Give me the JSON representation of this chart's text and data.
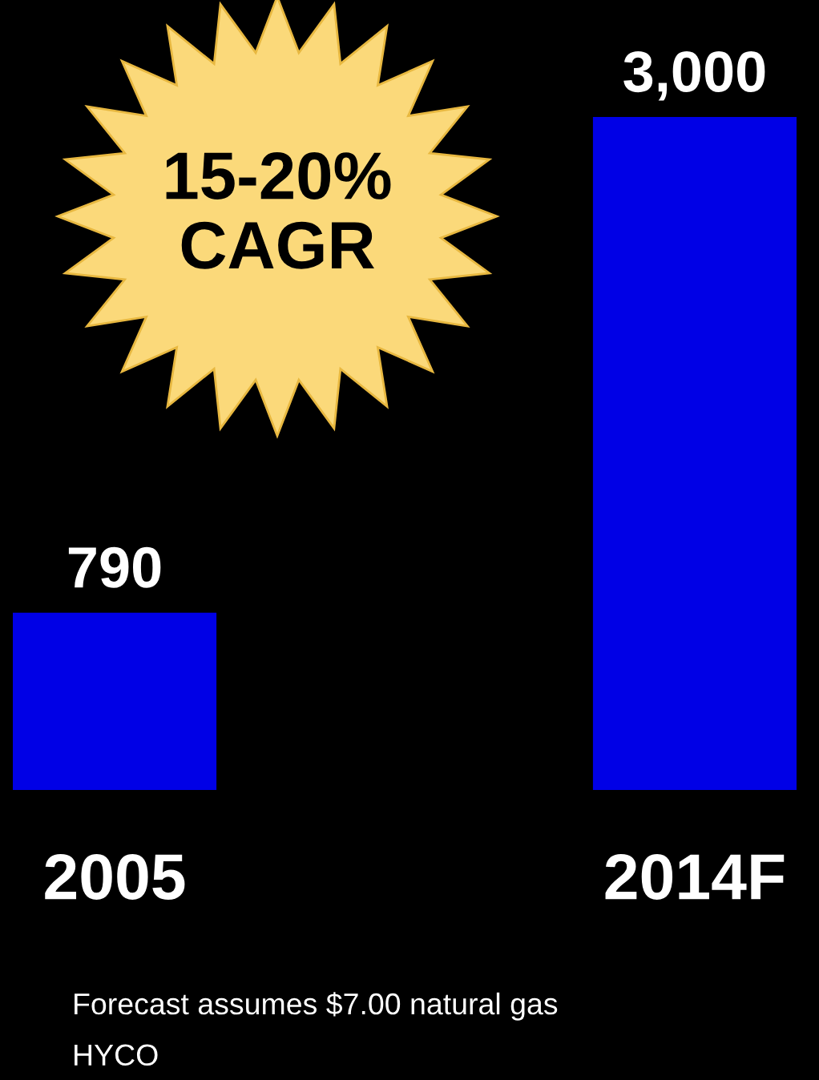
{
  "chart_data": {
    "type": "bar",
    "categories": [
      "2005",
      "2014F"
    ],
    "values": [
      790,
      3000
    ],
    "color": "#0000e6",
    "data_labels": true,
    "value_labels": [
      "790",
      "3,000"
    ],
    "annotations": [
      "15-20%\nCAGR",
      "Forecast assumes $7.00 natural gas",
      "HYCO"
    ],
    "grid": false,
    "legend": false
  }
}
